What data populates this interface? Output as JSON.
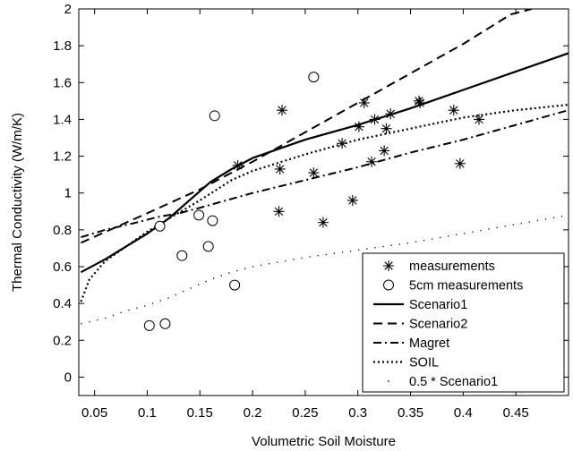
{
  "chart_data": {
    "type": "line",
    "title": "",
    "xlabel": "Volumetric Soil Moisture",
    "ylabel": "Thermal Conductivity (W/m/K)",
    "xlim": [
      0.035,
      0.5
    ],
    "ylim": [
      -0.1,
      2.0
    ],
    "x_ticks": [
      0.05,
      0.1,
      0.15,
      0.2,
      0.25,
      0.3,
      0.35,
      0.4,
      0.45
    ],
    "x_tick_labels": [
      "0.05",
      "0.1",
      "0.15",
      "0.2",
      "0.25",
      "0.3",
      "0.35",
      "0.4",
      "0.45"
    ],
    "y_ticks": [
      0,
      0.2,
      0.4,
      0.6,
      0.8,
      1.0,
      1.2,
      1.4,
      1.6,
      1.8,
      2.0
    ],
    "y_tick_labels": [
      "0",
      "0.2",
      "0.4",
      "0.6",
      "0.8",
      "1",
      "1.2",
      "1.4",
      "1.6",
      "1.8",
      "2"
    ],
    "grid": false,
    "legend_position": "bottom-right",
    "series": [
      {
        "name": "measurements",
        "kind": "scatter",
        "marker": "asterisk",
        "points": [
          [
            0.186,
            1.15
          ],
          [
            0.225,
            0.9
          ],
          [
            0.226,
            1.13
          ],
          [
            0.228,
            1.45
          ],
          [
            0.258,
            1.11
          ],
          [
            0.267,
            0.84
          ],
          [
            0.285,
            1.27
          ],
          [
            0.295,
            0.96
          ],
          [
            0.301,
            1.36
          ],
          [
            0.306,
            1.49
          ],
          [
            0.313,
            1.17
          ],
          [
            0.316,
            1.4
          ],
          [
            0.325,
            1.23
          ],
          [
            0.327,
            1.35
          ],
          [
            0.331,
            1.43
          ],
          [
            0.358,
            1.5
          ],
          [
            0.359,
            1.49
          ],
          [
            0.391,
            1.45
          ],
          [
            0.397,
            1.16
          ],
          [
            0.415,
            1.4
          ]
        ]
      },
      {
        "name": "5cm measurements",
        "kind": "scatter",
        "marker": "circle",
        "points": [
          [
            0.102,
            0.28
          ],
          [
            0.112,
            0.82
          ],
          [
            0.117,
            0.29
          ],
          [
            0.133,
            0.66
          ],
          [
            0.149,
            0.88
          ],
          [
            0.158,
            0.71
          ],
          [
            0.162,
            0.85
          ],
          [
            0.164,
            1.42
          ],
          [
            0.183,
            0.5
          ],
          [
            0.258,
            1.63
          ]
        ]
      },
      {
        "name": "Scenario1",
        "kind": "line",
        "dash": "solid",
        "points": [
          [
            0.037,
            0.57
          ],
          [
            0.06,
            0.64
          ],
          [
            0.08,
            0.71
          ],
          [
            0.1,
            0.78
          ],
          [
            0.12,
            0.86
          ],
          [
            0.14,
            0.96
          ],
          [
            0.16,
            1.06
          ],
          [
            0.18,
            1.13
          ],
          [
            0.2,
            1.19
          ],
          [
            0.25,
            1.29
          ],
          [
            0.3,
            1.37
          ],
          [
            0.35,
            1.46
          ],
          [
            0.4,
            1.56
          ],
          [
            0.45,
            1.66
          ],
          [
            0.5,
            1.76
          ]
        ]
      },
      {
        "name": "Scenario2",
        "kind": "line",
        "dash": "dashed",
        "points": [
          [
            0.037,
            0.73
          ],
          [
            0.1,
            0.89
          ],
          [
            0.15,
            1.02
          ],
          [
            0.2,
            1.17
          ],
          [
            0.25,
            1.33
          ],
          [
            0.3,
            1.49
          ],
          [
            0.35,
            1.65
          ],
          [
            0.4,
            1.81
          ],
          [
            0.445,
            1.97
          ],
          [
            0.465,
            2.0
          ]
        ]
      },
      {
        "name": "Magret",
        "kind": "line",
        "dash": "dashdot",
        "points": [
          [
            0.037,
            0.76
          ],
          [
            0.06,
            0.8
          ],
          [
            0.09,
            0.84
          ],
          [
            0.11,
            0.87
          ],
          [
            0.13,
            0.89
          ],
          [
            0.15,
            0.92
          ],
          [
            0.2,
            1.0
          ],
          [
            0.25,
            1.07
          ],
          [
            0.3,
            1.14
          ],
          [
            0.35,
            1.22
          ],
          [
            0.4,
            1.29
          ],
          [
            0.45,
            1.37
          ],
          [
            0.5,
            1.45
          ]
        ]
      },
      {
        "name": "SOIL",
        "kind": "line",
        "dash": "dotted",
        "points": [
          [
            0.037,
            0.41
          ],
          [
            0.045,
            0.53
          ],
          [
            0.06,
            0.63
          ],
          [
            0.08,
            0.71
          ],
          [
            0.1,
            0.79
          ],
          [
            0.12,
            0.86
          ],
          [
            0.15,
            0.96
          ],
          [
            0.18,
            1.07
          ],
          [
            0.2,
            1.12
          ],
          [
            0.25,
            1.21
          ],
          [
            0.3,
            1.29
          ],
          [
            0.35,
            1.35
          ],
          [
            0.4,
            1.41
          ],
          [
            0.45,
            1.45
          ],
          [
            0.5,
            1.48
          ]
        ]
      },
      {
        "name": "0.5 * Scenario1",
        "kind": "line",
        "dash": "sparse-dot",
        "points": [
          [
            0.037,
            0.29
          ],
          [
            0.06,
            0.32
          ],
          [
            0.08,
            0.36
          ],
          [
            0.1,
            0.39
          ],
          [
            0.12,
            0.43
          ],
          [
            0.14,
            0.48
          ],
          [
            0.16,
            0.53
          ],
          [
            0.18,
            0.57
          ],
          [
            0.2,
            0.6
          ],
          [
            0.25,
            0.65
          ],
          [
            0.3,
            0.69
          ],
          [
            0.35,
            0.73
          ],
          [
            0.4,
            0.78
          ],
          [
            0.45,
            0.83
          ],
          [
            0.5,
            0.88
          ]
        ]
      }
    ]
  }
}
